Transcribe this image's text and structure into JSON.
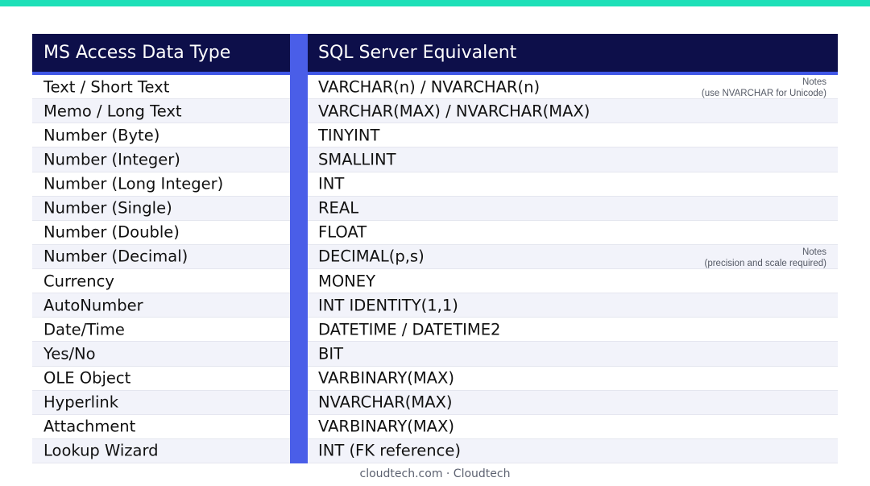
{
  "header": {
    "left_title": "MS Access Data Type",
    "right_title": "SQL Server Equivalent"
  },
  "colors": {
    "top_bar": "#1de0b8",
    "header_bg": "#0d0f4a",
    "divider": "#4a5ee8",
    "row_alt": "#f2f3fa"
  },
  "rows": [
    {
      "access": "Text / Short Text",
      "sql": "VARCHAR(n) / NVARCHAR(n)",
      "note_label": "Notes",
      "note_text": "(use NVARCHAR for Unicode)"
    },
    {
      "access": "Memo / Long Text",
      "sql": "VARCHAR(MAX) / NVARCHAR(MAX)"
    },
    {
      "access": "Number (Byte)",
      "sql": "TINYINT"
    },
    {
      "access": "Number (Integer)",
      "sql": "SMALLINT"
    },
    {
      "access": "Number (Long Integer)",
      "sql": "INT"
    },
    {
      "access": "Number (Single)",
      "sql": "REAL"
    },
    {
      "access": "Number (Double)",
      "sql": "FLOAT"
    },
    {
      "access": "Number (Decimal)",
      "sql": "DECIMAL(p,s)",
      "note_label": "Notes",
      "note_text": "(precision and scale required)"
    },
    {
      "access": "Currency",
      "sql": "MONEY"
    },
    {
      "access": "AutoNumber",
      "sql": "INT IDENTITY(1,1)"
    },
    {
      "access": "Date/Time",
      "sql": "DATETIME / DATETIME2"
    },
    {
      "access": "Yes/No",
      "sql": "BIT"
    },
    {
      "access": "OLE Object",
      "sql": "VARBINARY(MAX)"
    },
    {
      "access": "Hyperlink",
      "sql": "NVARCHAR(MAX)"
    },
    {
      "access": "Attachment",
      "sql": "VARBINARY(MAX)"
    },
    {
      "access": "Lookup Wizard",
      "sql": "INT (FK reference)"
    }
  ],
  "footer": {
    "text": "cloudtech.com · Cloudtech"
  }
}
